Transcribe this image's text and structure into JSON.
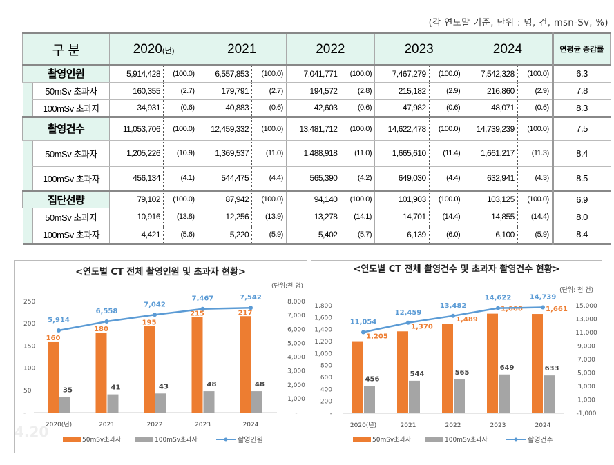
{
  "unit_note": "(각 연도말 기준, 단위 : 명, 건, msn-Sv, %)",
  "table": {
    "header": {
      "category": "구 분",
      "years": [
        "2020",
        "2021",
        "2022",
        "2023",
        "2024"
      ],
      "year_suffix": "(년)",
      "rate": "연평균 증감률"
    },
    "rows": [
      {
        "label": "촬영인원",
        "main": true,
        "values": [
          "5,914,428",
          "6,557,853",
          "7,041,771",
          "7,467,279",
          "7,542,328"
        ],
        "pcts": [
          "(100.0)",
          "(100.0)",
          "(100.0)",
          "(100.0)",
          "(100.0)"
        ],
        "rate": "6.3"
      },
      {
        "label": "50mSv 초과자",
        "main": false,
        "values": [
          "160,355",
          "179,791",
          "194,572",
          "215,182",
          "216,860"
        ],
        "pcts": [
          "(2.7)",
          "(2.7)",
          "(2.8)",
          "(2.9)",
          "(2.9)"
        ],
        "rate": "7.8"
      },
      {
        "label": "100mSv 초과자",
        "main": false,
        "values": [
          "34,931",
          "40,883",
          "42,603",
          "47,982",
          "48,071"
        ],
        "pcts": [
          "(0.6)",
          "(0.6)",
          "(0.6)",
          "(0.6)",
          "(0.6)"
        ],
        "rate": "8.3",
        "end": true
      },
      {
        "label": "촬영건수",
        "main": true,
        "values": [
          "11,053,706",
          "12,459,332",
          "13,481,712",
          "14,622,478",
          "14,739,239"
        ],
        "pcts": [
          "(100.0)",
          "(100.0)",
          "(100.0)",
          "(100.0)",
          "(100.0)"
        ],
        "rate": "7.5"
      },
      {
        "label": "50mSv 초과자",
        "main": false,
        "values": [
          "1,205,226",
          "1,369,537",
          "1,488,918",
          "1,665,610",
          "1,661,217"
        ],
        "pcts": [
          "(10.9)",
          "(11.0)",
          "(11.0)",
          "(11.4)",
          "(11.3)"
        ],
        "rate": "8.4"
      },
      {
        "label": "100mSv 초과자",
        "main": false,
        "values": [
          "456,134",
          "544,475",
          "565,390",
          "649,030",
          "632,941"
        ],
        "pcts": [
          "(4.1)",
          "(4.4)",
          "(4.2)",
          "(4.4)",
          "(4.3)"
        ],
        "rate": "8.5",
        "end": true
      },
      {
        "label": "집단선량",
        "main": true,
        "values": [
          "79,102",
          "87,942",
          "94,140",
          "101,903",
          "103,125"
        ],
        "pcts": [
          "(100.0)",
          "(100.0)",
          "(100.0)",
          "(100.0)",
          "(100.0)"
        ],
        "rate": "6.9"
      },
      {
        "label": "50mSv 초과자",
        "main": false,
        "values": [
          "10,916",
          "12,256",
          "13,278",
          "14,701",
          "14,855"
        ],
        "pcts": [
          "(13.8)",
          "(13.9)",
          "(14.1)",
          "(14.4)",
          "(14.4)"
        ],
        "rate": "8.0"
      },
      {
        "label": "100mSv 초과자",
        "main": false,
        "values": [
          "4,421",
          "5,220",
          "5,402",
          "6,139",
          "6,100"
        ],
        "pcts": [
          "(5.6)",
          "(5.9)",
          "(5.7)",
          "(6.0)",
          "(5.9)"
        ],
        "rate": "8.4",
        "end": true
      }
    ]
  },
  "chart_data": [
    {
      "type": "bar",
      "title": "<연도별 CT 전체 촬영인원 및 초과자 현황>",
      "unit": "(단위:천 명)",
      "categories": [
        "2020(년)",
        "2021",
        "2022",
        "2023",
        "2024"
      ],
      "series": [
        {
          "name": "50mSv초과자",
          "axis": "left",
          "type": "bar",
          "color": "#ed7d31",
          "values": [
            160,
            180,
            195,
            215,
            217
          ]
        },
        {
          "name": "100mSv초과자",
          "axis": "left",
          "type": "bar",
          "color": "#a5a5a5",
          "values": [
            35,
            41,
            43,
            48,
            48
          ]
        },
        {
          "name": "촬영인원",
          "axis": "right",
          "type": "line",
          "color": "#5b9bd5",
          "values": [
            5914,
            6558,
            7042,
            7467,
            7542
          ],
          "labels": [
            "5,914",
            "6,558",
            "7,042",
            "7,467",
            "7,542"
          ]
        }
      ],
      "left_axis": {
        "ylim": [
          0,
          250
        ],
        "ticks": [
          "-",
          "50",
          "100",
          "150",
          "200",
          "250"
        ]
      },
      "right_axis": {
        "ylim": [
          0,
          8000
        ],
        "ticks": [
          "-",
          "1,000",
          "2,000",
          "3,000",
          "4,000",
          "5,000",
          "6,000",
          "7,000",
          "8,000"
        ]
      },
      "legend": "bottom",
      "watermark": "4.20"
    },
    {
      "type": "bar",
      "title": "<연도별 CT 전체 촬영건수 및 초과자 촬영건수 현황>",
      "unit": "(단위: 천 건)",
      "categories": [
        "2020(년)",
        "2021",
        "2022",
        "2023",
        "2024"
      ],
      "series": [
        {
          "name": "50mSv초과자",
          "axis": "left",
          "type": "bar",
          "color": "#ed7d31",
          "values": [
            1205,
            1370,
            1489,
            1666,
            1661
          ],
          "labels": [
            "1,205",
            "1,370",
            "1,489",
            "1,666",
            "1,661"
          ]
        },
        {
          "name": "100mSv초과자",
          "axis": "left",
          "type": "bar",
          "color": "#a5a5a5",
          "values": [
            456,
            544,
            565,
            649,
            633
          ]
        },
        {
          "name": "촬영건수",
          "axis": "right",
          "type": "line",
          "color": "#5b9bd5",
          "values": [
            11054,
            12459,
            13482,
            14622,
            14739
          ],
          "labels": [
            "11,054",
            "12,459",
            "13,482",
            "14,622",
            "14,739"
          ]
        }
      ],
      "left_axis": {
        "ylim": [
          0,
          1800
        ],
        "ticks": [
          "-",
          "200",
          "400",
          "600",
          "800",
          "1,000",
          "1,200",
          "1,400",
          "1,600",
          "1,800"
        ]
      },
      "right_axis": {
        "ylim": [
          -1000,
          15000
        ],
        "ticks": [
          "-1,000",
          "1,000",
          "3,000",
          "5,000",
          "7,000",
          "9,000",
          "11,000",
          "13,000",
          "15,000"
        ]
      },
      "legend": "bottom"
    }
  ]
}
